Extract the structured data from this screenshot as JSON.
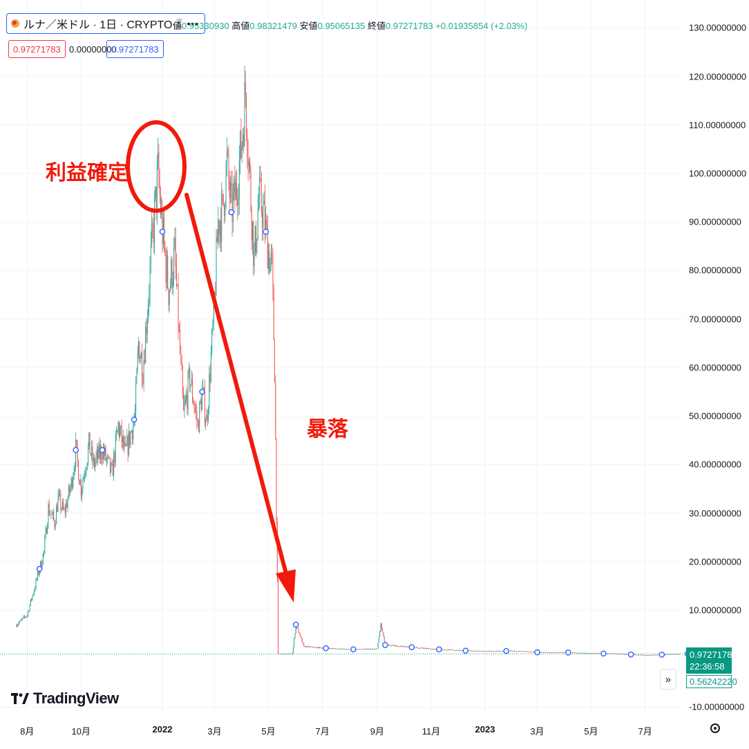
{
  "header": {
    "symbol": "ルナ／米ドル · 1日 · CRYPTO",
    "more_icon": "•••",
    "ohlc_open_label": "値",
    "ohlc_open": "0.95330930",
    "ohlc_high_label": "高値",
    "ohlc_high": "0.98321479",
    "ohlc_low_label": "安値",
    "ohlc_low": "0.95065135",
    "ohlc_close_label": "終値",
    "ohlc_close": "0.97271783",
    "ohlc_change": "+0.01935854 (+2.03%)",
    "price_red": "0.97271783",
    "price_mid": "0.00000000",
    "price_blue": "0.97271783"
  },
  "annotations": {
    "profit": "利益確定",
    "crash": "暴落"
  },
  "price_scale": {
    "last_price": "0.97271783",
    "countdown": "22:36:58",
    "low_price": "0.56242220"
  },
  "logo_text": "TradingView",
  "colors": {
    "up": "#26a69a",
    "down": "#ef5350",
    "annotation": "#f21a0a",
    "accent": "#2962ff",
    "last_price_bg": "#089981"
  },
  "chart_data": {
    "type": "candlestick",
    "title": "ルナ／米ドル · 1日 · CRYPTO",
    "xlabel": "",
    "ylabel": "",
    "x_tick_labels": [
      "8月",
      "10月",
      "2022",
      "3月",
      "5月",
      "7月",
      "9月",
      "11月",
      "2023",
      "3月",
      "5月",
      "7月"
    ],
    "y_tick_labels": [
      "130.00000000",
      "120.00000000",
      "110.00000000",
      "100.00000000",
      "90.00000000",
      "80.00000000",
      "70.00000000",
      "60.00000000",
      "50.00000000",
      "40.00000000",
      "30.00000000",
      "20.00000000",
      "10.00000000",
      "-10.00000000"
    ],
    "ylim": [
      -11,
      132
    ],
    "xlim": [
      "2021-07-15",
      "2023-08-20"
    ],
    "grid": true,
    "legend": "none",
    "series": [
      {
        "points": [
          [
            "2021-07-20",
            7
          ],
          [
            "2021-08-01",
            9
          ],
          [
            "2021-08-10",
            15
          ],
          [
            "2021-08-20",
            22
          ],
          [
            "2021-08-25",
            31
          ],
          [
            "2021-09-01",
            28
          ],
          [
            "2021-09-05",
            33
          ],
          [
            "2021-09-12",
            30
          ],
          [
            "2021-09-20",
            36
          ],
          [
            "2021-09-25",
            43
          ],
          [
            "2021-10-01",
            35
          ],
          [
            "2021-10-10",
            44
          ],
          [
            "2021-10-15",
            40
          ],
          [
            "2021-10-25",
            43
          ],
          [
            "2021-11-05",
            38
          ],
          [
            "2021-11-12",
            48
          ],
          [
            "2021-11-20",
            42
          ],
          [
            "2021-12-01",
            50
          ],
          [
            "2021-12-05",
            65
          ],
          [
            "2021-12-10",
            60
          ],
          [
            "2021-12-15",
            72
          ],
          [
            "2021-12-20",
            85
          ],
          [
            "2021-12-27",
            100
          ],
          [
            "2022-01-01",
            88
          ],
          [
            "2022-01-08",
            76
          ],
          [
            "2022-01-15",
            83
          ],
          [
            "2022-01-20",
            66
          ],
          [
            "2022-01-25",
            50
          ],
          [
            "2022-02-01",
            58
          ],
          [
            "2022-02-10",
            48
          ],
          [
            "2022-02-15",
            55
          ],
          [
            "2022-02-20",
            49
          ],
          [
            "2022-02-28",
            70
          ],
          [
            "2022-03-05",
            90
          ],
          [
            "2022-03-10",
            92
          ],
          [
            "2022-03-15",
            102
          ],
          [
            "2022-03-20",
            92
          ],
          [
            "2022-03-25",
            96
          ],
          [
            "2022-03-31",
            105
          ],
          [
            "2022-04-05",
            117
          ],
          [
            "2022-04-10",
            98
          ],
          [
            "2022-04-15",
            82
          ],
          [
            "2022-04-20",
            95
          ],
          [
            "2022-04-25",
            92
          ],
          [
            "2022-05-01",
            84
          ],
          [
            "2022-05-05",
            80
          ],
          [
            "2022-05-08",
            60
          ],
          [
            "2022-05-10",
            30
          ],
          [
            "2022-05-12",
            1
          ],
          [
            "2022-05-28",
            1
          ],
          [
            "2022-06-01",
            7
          ],
          [
            "2022-06-10",
            2.5
          ],
          [
            "2022-07-01",
            2.2
          ],
          [
            "2022-08-01",
            1.9
          ],
          [
            "2022-09-01",
            2
          ],
          [
            "2022-09-05",
            7
          ],
          [
            "2022-09-10",
            2.8
          ],
          [
            "2022-10-01",
            2.5
          ],
          [
            "2022-11-01",
            2
          ],
          [
            "2022-12-01",
            1.7
          ],
          [
            "2023-01-01",
            1.5
          ],
          [
            "2023-02-01",
            1.6
          ],
          [
            "2023-03-01",
            1.3
          ],
          [
            "2023-04-01",
            1.3
          ],
          [
            "2023-05-01",
            1.1
          ],
          [
            "2023-06-01",
            1.0
          ],
          [
            "2023-07-01",
            0.7
          ],
          [
            "2023-08-10",
            0.97
          ]
        ]
      }
    ],
    "event_markers": [
      "2021-08-15",
      "2021-09-25",
      "2021-10-25",
      "2021-11-30",
      "2022-01-01",
      "2022-02-15",
      "2022-03-20",
      "2022-04-28",
      "2022-06-01",
      "2022-07-05",
      "2022-08-05",
      "2022-09-10",
      "2022-10-10",
      "2022-11-10",
      "2022-12-10",
      "2023-01-25",
      "2023-03-01",
      "2023-04-05",
      "2023-05-15",
      "2023-06-15",
      "2023-07-20",
      "2023-08-18"
    ],
    "last_price": 0.97271783
  }
}
